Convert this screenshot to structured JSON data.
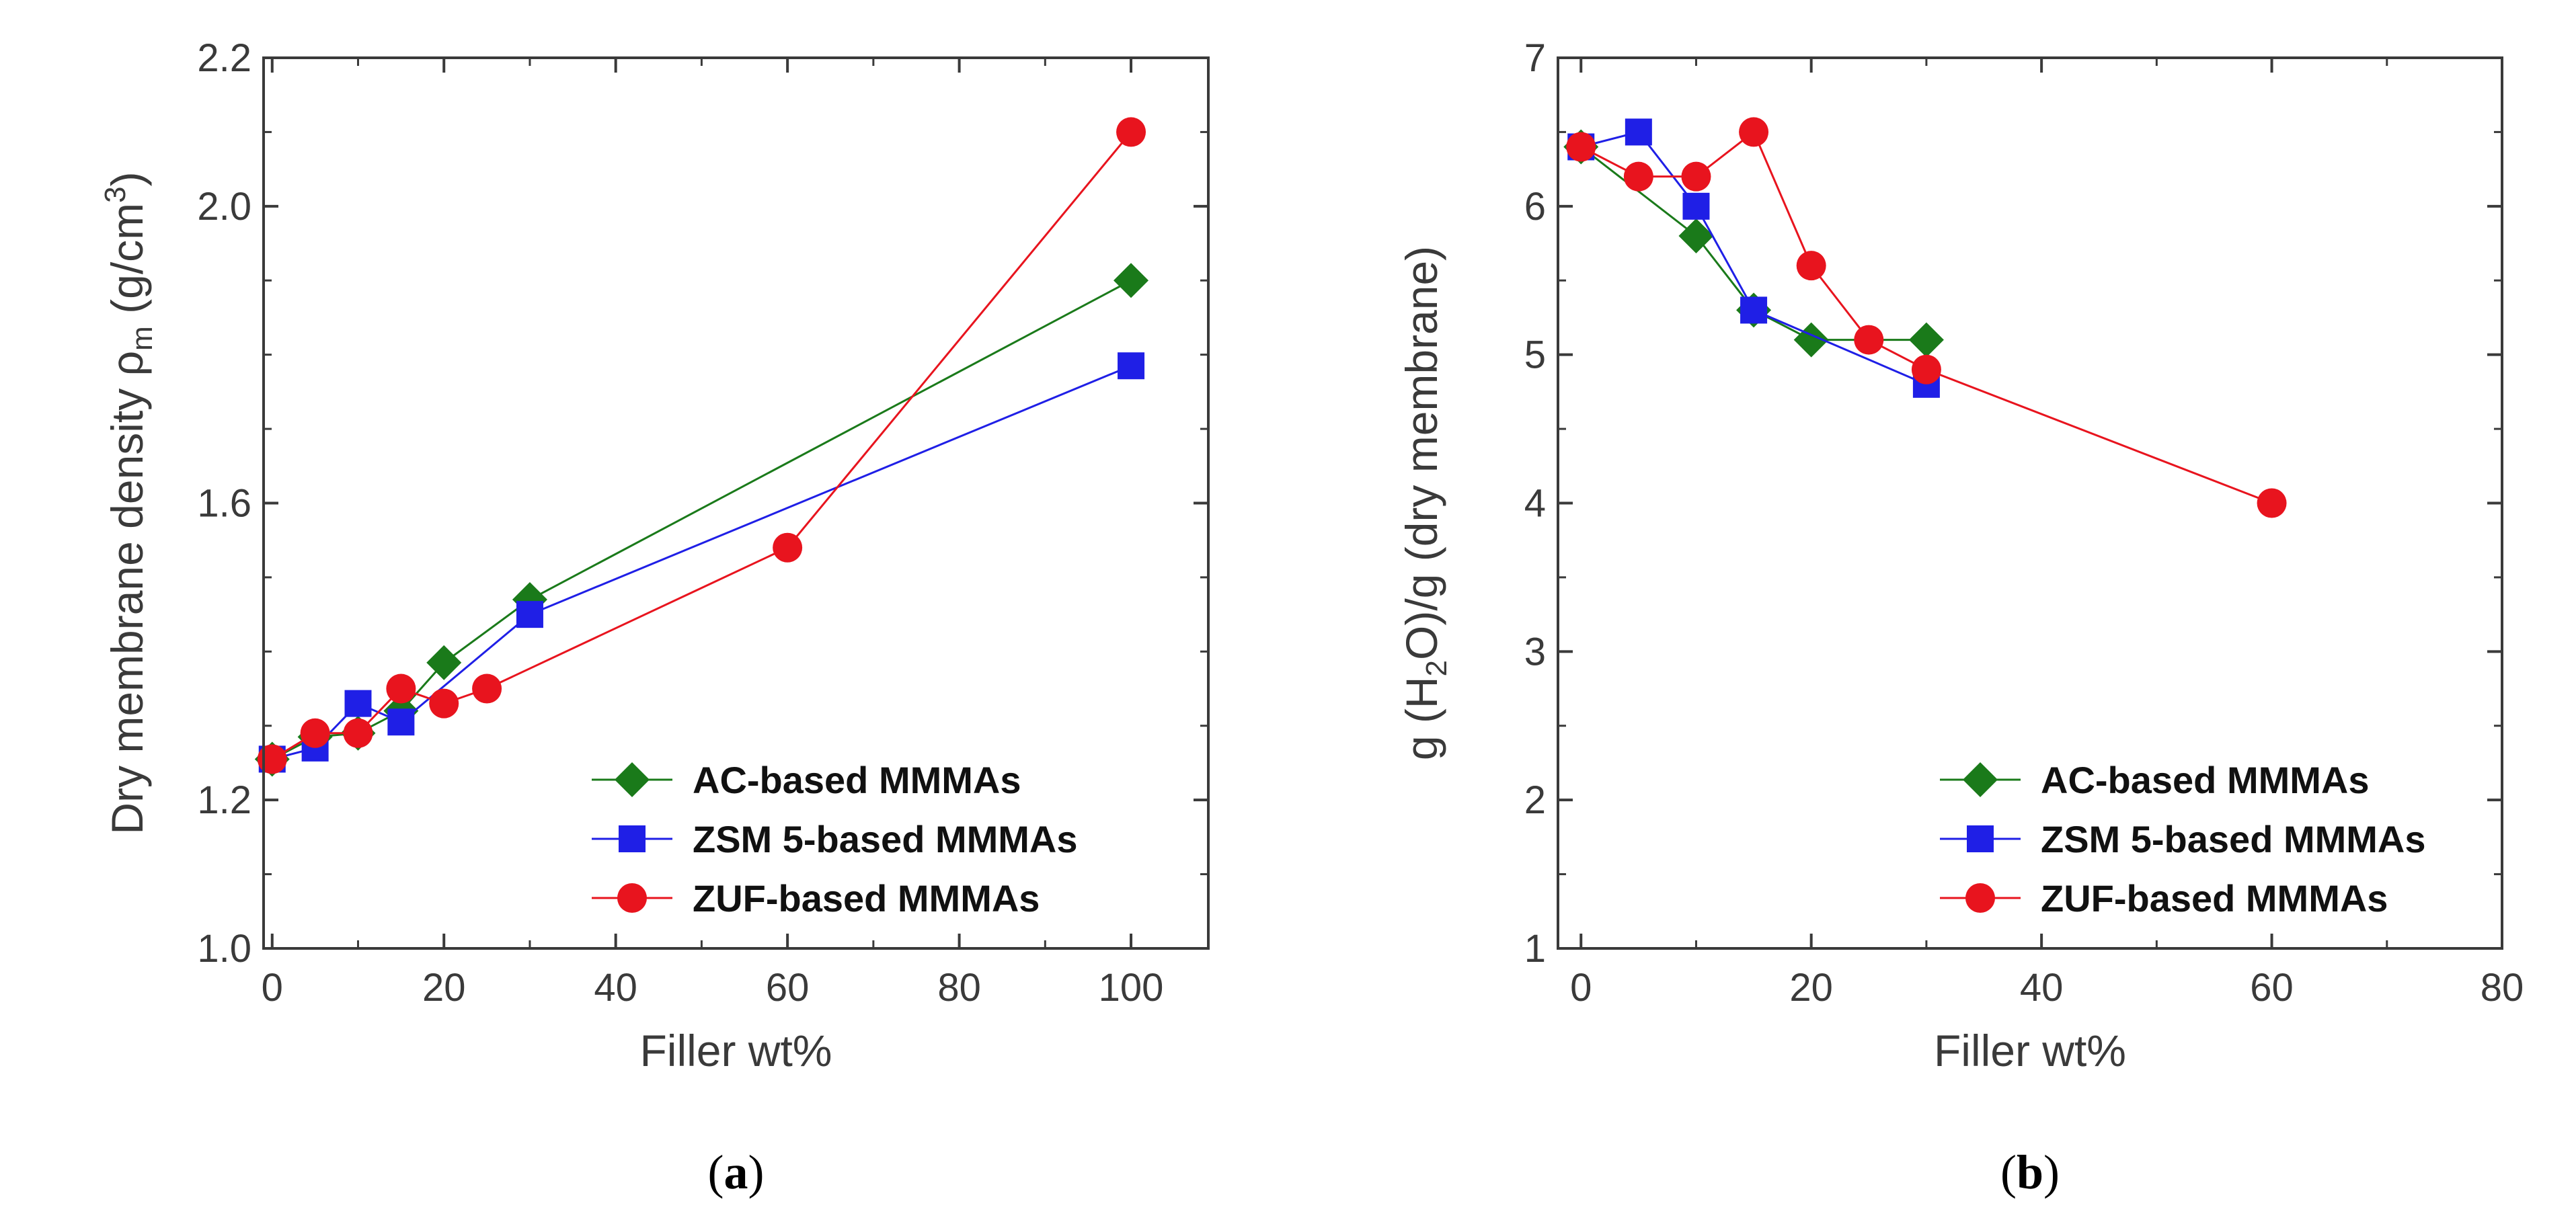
{
  "colors": {
    "ac": "#1a7a1a",
    "zsm": "#1f1fe6",
    "zuf": "#e8141e",
    "axis": "#3a3a3a"
  },
  "chart_data": [
    {
      "type": "line",
      "caption": "(a)",
      "caption_letter": "a",
      "xlabel": "Filler wt%",
      "ylabel_main": "Dry membrane density ",
      "ylabel_rho": "ρ",
      "ylabel_sub": "m",
      "ylabel_unit_open": "  (g/cm",
      "ylabel_sup": "3",
      "ylabel_close": ")",
      "xlim": [
        -1,
        109
      ],
      "ylim": [
        1.0,
        2.2
      ],
      "xticks": [
        0,
        20,
        40,
        60,
        80,
        100
      ],
      "xtick_labels": [
        "0",
        "20",
        "40",
        "60",
        "80",
        "100"
      ],
      "yticks": [
        1.0,
        1.2,
        1.6,
        2.0,
        2.2
      ],
      "ytick_labels": [
        "1.0",
        "1.2",
        "1.6",
        "2.0",
        "2.2"
      ],
      "legend_position": "lower-right",
      "series": [
        {
          "name": "AC-based MMMAs",
          "key": "ac",
          "marker": "diamond",
          "x": [
            0,
            5,
            10,
            15,
            20,
            30,
            100
          ],
          "y": [
            1.255,
            1.285,
            1.29,
            1.32,
            1.385,
            1.47,
            1.9
          ]
        },
        {
          "name": "ZSM 5-based MMMAs",
          "key": "zsm",
          "marker": "square",
          "x": [
            0,
            5,
            10,
            15,
            30,
            100
          ],
          "y": [
            1.255,
            1.27,
            1.33,
            1.305,
            1.45,
            1.785
          ]
        },
        {
          "name": "ZUF-based MMMAs",
          "key": "zuf",
          "marker": "circle",
          "x": [
            0,
            5,
            10,
            15,
            20,
            25,
            60,
            100
          ],
          "y": [
            1.255,
            1.29,
            1.29,
            1.35,
            1.33,
            1.35,
            1.54,
            2.1
          ]
        }
      ]
    },
    {
      "type": "line",
      "caption": "(b)",
      "caption_letter": "b",
      "xlabel": "Filler wt%",
      "ylabel_main": "g (H",
      "ylabel_sub": "2",
      "ylabel_rest": "O)/g (dry membrane)",
      "xlim": [
        -2,
        80
      ],
      "ylim": [
        1,
        7
      ],
      "xticks": [
        0,
        20,
        40,
        60,
        80
      ],
      "xtick_labels": [
        "0",
        "20",
        "40",
        "60",
        "80"
      ],
      "yticks": [
        1,
        2,
        3,
        4,
        5,
        6,
        7
      ],
      "ytick_labels": [
        "1",
        "2",
        "3",
        "4",
        "5",
        "6",
        "7"
      ],
      "legend_position": "lower-right",
      "series": [
        {
          "name": "AC-based MMMAs",
          "key": "ac",
          "marker": "diamond",
          "x": [
            0,
            10,
            15,
            20,
            30
          ],
          "y": [
            6.4,
            5.8,
            5.3,
            5.1,
            5.1
          ]
        },
        {
          "name": "ZSM 5-based MMMAs",
          "key": "zsm",
          "marker": "square",
          "x": [
            0,
            5,
            10,
            15,
            30
          ],
          "y": [
            6.4,
            6.5,
            6.0,
            5.3,
            4.8
          ]
        },
        {
          "name": "ZUF-based MMMAs",
          "key": "zuf",
          "marker": "circle",
          "x": [
            0,
            5,
            10,
            15,
            20,
            25,
            30,
            60
          ],
          "y": [
            6.4,
            6.2,
            6.2,
            6.5,
            5.6,
            5.1,
            4.9,
            4.0
          ]
        }
      ]
    }
  ]
}
